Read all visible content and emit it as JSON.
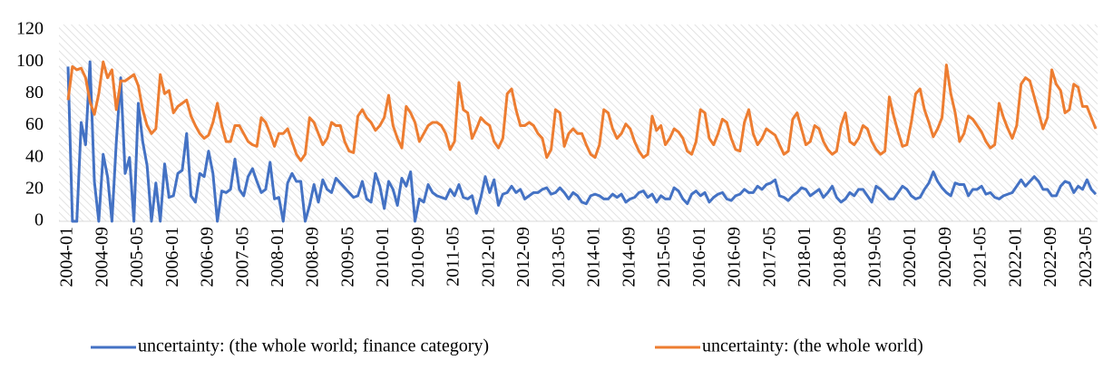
{
  "chart_data": {
    "type": "line",
    "categories": [
      "2004-01",
      null,
      null,
      null,
      null,
      null,
      null,
      null,
      "2004-09",
      null,
      null,
      null,
      null,
      null,
      null,
      null,
      "2005-05",
      null,
      null,
      null,
      null,
      null,
      null,
      null,
      "2006-01",
      null,
      null,
      null,
      null,
      null,
      null,
      null,
      "2006-09",
      null,
      null,
      null,
      null,
      null,
      null,
      null,
      "2007-05",
      null,
      null,
      null,
      null,
      null,
      null,
      null,
      "2008-01",
      null,
      null,
      null,
      null,
      null,
      null,
      null,
      "2008-09",
      null,
      null,
      null,
      null,
      null,
      null,
      null,
      "2009-05",
      null,
      null,
      null,
      null,
      null,
      null,
      null,
      "2010-01",
      null,
      null,
      null,
      null,
      null,
      null,
      null,
      "2010-09",
      null,
      null,
      null,
      null,
      null,
      null,
      null,
      "2011-05",
      null,
      null,
      null,
      null,
      null,
      null,
      null,
      "2012-01",
      null,
      null,
      null,
      null,
      null,
      null,
      null,
      "2012-09",
      null,
      null,
      null,
      null,
      null,
      null,
      null,
      "2013-05",
      null,
      null,
      null,
      null,
      null,
      null,
      null,
      "2014-01",
      null,
      null,
      null,
      null,
      null,
      null,
      null,
      "2014-09",
      null,
      null,
      null,
      null,
      null,
      null,
      null,
      "2015-05",
      null,
      null,
      null,
      null,
      null,
      null,
      null,
      "2016-01",
      null,
      null,
      null,
      null,
      null,
      null,
      null,
      "2016-09",
      null,
      null,
      null,
      null,
      null,
      null,
      null,
      "2017-05",
      null,
      null,
      null,
      null,
      null,
      null,
      null,
      "2018-01",
      null,
      null,
      null,
      null,
      null,
      null,
      null,
      "2018-09",
      null,
      null,
      null,
      null,
      null,
      null,
      null,
      "2019-05",
      null,
      null,
      null,
      null,
      null,
      null,
      null,
      "2020-01",
      null,
      null,
      null,
      null,
      null,
      null,
      null,
      "2020-09",
      null,
      null,
      null,
      null,
      null,
      null,
      null,
      "2021-05",
      null,
      null,
      null,
      null,
      null,
      null,
      null,
      "2022-01",
      null,
      null,
      null,
      null,
      null,
      null,
      null,
      "2022-09",
      null,
      null,
      null,
      null,
      null,
      null,
      null,
      "2023-05",
      null,
      null
    ],
    "series": [
      {
        "name": "uncertainty: (the whole world; finance category)",
        "color": "#4472c4",
        "values": [
          97,
          0,
          0,
          62,
          48,
          100,
          25,
          0,
          42,
          28,
          0,
          50,
          90,
          30,
          40,
          0,
          74,
          50,
          35,
          0,
          24,
          0,
          36,
          15,
          16,
          30,
          32,
          55,
          16,
          12,
          30,
          28,
          44,
          30,
          0,
          19,
          18,
          20,
          39,
          20,
          16,
          28,
          33,
          25,
          18,
          20,
          37,
          14,
          15,
          0,
          24,
          30,
          25,
          25,
          0,
          10,
          23,
          12,
          26,
          20,
          18,
          27,
          24,
          21,
          18,
          15,
          16,
          25,
          14,
          12,
          30,
          22,
          8,
          25,
          20,
          10,
          27,
          22,
          31,
          0,
          14,
          12,
          23,
          18,
          16,
          15,
          14,
          20,
          16,
          23,
          15,
          14,
          16,
          5,
          15,
          28,
          18,
          26,
          10,
          17,
          18,
          22,
          18,
          20,
          14,
          16,
          18,
          18,
          20,
          21,
          17,
          18,
          21,
          18,
          14,
          18,
          16,
          12,
          11,
          16,
          17,
          16,
          14,
          14,
          17,
          15,
          17,
          12,
          14,
          15,
          18,
          19,
          15,
          17,
          12,
          16,
          14,
          14,
          21,
          19,
          14,
          11,
          17,
          19,
          16,
          18,
          12,
          15,
          17,
          18,
          14,
          13,
          16,
          17,
          20,
          18,
          18,
          22,
          20,
          23,
          24,
          26,
          16,
          15,
          13,
          16,
          18,
          21,
          20,
          16,
          18,
          20,
          15,
          18,
          22,
          15,
          12,
          14,
          18,
          16,
          20,
          20,
          16,
          12,
          22,
          20,
          17,
          14,
          14,
          18,
          22,
          20,
          16,
          14,
          15,
          20,
          24,
          31,
          25,
          21,
          18,
          16,
          24,
          23,
          23,
          16,
          20,
          20,
          22,
          17,
          18,
          15,
          14,
          16,
          17,
          18,
          22,
          26,
          22,
          25,
          28,
          25,
          20,
          20,
          16,
          16,
          22,
          25,
          24,
          18,
          22,
          20,
          26,
          20,
          17
        ]
      },
      {
        "name": "uncertainty: (the whole world)",
        "color": "#ed7d31",
        "values": [
          76,
          97,
          95,
          96,
          90,
          75,
          67,
          80,
          100,
          90,
          95,
          70,
          88,
          88,
          90,
          92,
          85,
          70,
          60,
          55,
          58,
          92,
          80,
          82,
          68,
          72,
          74,
          76,
          66,
          60,
          55,
          52,
          54,
          62,
          74,
          60,
          50,
          50,
          60,
          60,
          55,
          50,
          48,
          47,
          65,
          62,
          55,
          47,
          55,
          55,
          58,
          50,
          42,
          38,
          42,
          65,
          62,
          55,
          48,
          52,
          62,
          60,
          60,
          50,
          44,
          43,
          66,
          70,
          65,
          62,
          57,
          60,
          65,
          79,
          60,
          52,
          46,
          72,
          68,
          62,
          50,
          55,
          60,
          62,
          62,
          60,
          55,
          45,
          50,
          87,
          70,
          68,
          52,
          58,
          65,
          62,
          60,
          50,
          46,
          52,
          80,
          83,
          70,
          60,
          60,
          62,
          60,
          55,
          52,
          40,
          45,
          70,
          68,
          47,
          55,
          58,
          55,
          55,
          48,
          42,
          40,
          48,
          70,
          68,
          58,
          52,
          55,
          61,
          58,
          50,
          44,
          40,
          42,
          66,
          57,
          60,
          48,
          52,
          58,
          56,
          52,
          44,
          42,
          50,
          70,
          68,
          52,
          48,
          55,
          64,
          62,
          52,
          45,
          44,
          62,
          70,
          55,
          48,
          52,
          58,
          56,
          54,
          48,
          42,
          44,
          64,
          68,
          58,
          48,
          50,
          60,
          58,
          50,
          45,
          42,
          44,
          60,
          68,
          50,
          48,
          52,
          60,
          58,
          50,
          45,
          42,
          44,
          78,
          66,
          56,
          47,
          48,
          62,
          80,
          83,
          70,
          62,
          53,
          58,
          65,
          98,
          80,
          68,
          50,
          55,
          66,
          64,
          60,
          56,
          50,
          46,
          48,
          74,
          65,
          58,
          52,
          60,
          86,
          90,
          88,
          78,
          68,
          58,
          65,
          95,
          86,
          82,
          68,
          70,
          86,
          84,
          72,
          72,
          65,
          58
        ]
      }
    ],
    "ylim": [
      0,
      120
    ],
    "yticks": [
      0,
      20,
      40,
      60,
      80,
      100,
      120
    ],
    "grid": false,
    "legend": "bottom"
  }
}
